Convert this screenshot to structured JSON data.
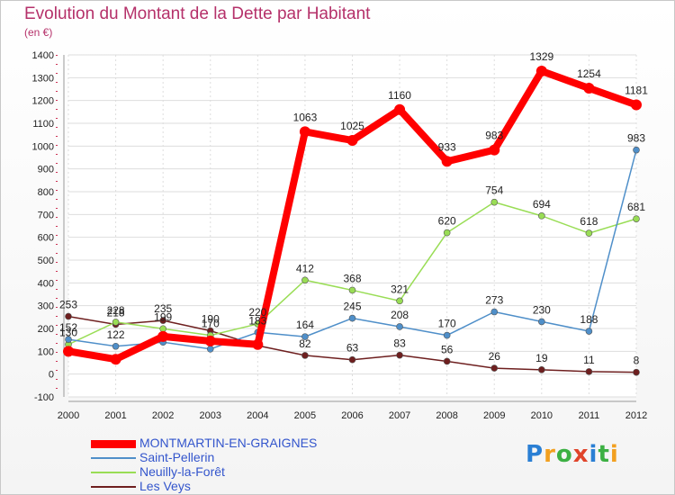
{
  "chart_data": {
    "type": "line",
    "title": "Evolution du Montant de la Dette par Habitant",
    "subtitle": "(en €)",
    "x": [
      "2000",
      "2001",
      "2002",
      "2003",
      "2004",
      "2005",
      "2006",
      "2007",
      "2008",
      "2009",
      "2010",
      "2011",
      "2012"
    ],
    "ylim": [
      -100,
      1400
    ],
    "yticks": [
      -100,
      0,
      100,
      200,
      300,
      400,
      500,
      600,
      700,
      800,
      900,
      1000,
      1100,
      1200,
      1300,
      1400
    ],
    "grid": true,
    "legend_placement": "bottom-left",
    "series": [
      {
        "name": "MONTMARTIN-EN-GRAIGNES",
        "color": "#ff0000",
        "values": [
          100,
          65,
          165,
          145,
          130,
          1063,
          1025,
          1160,
          933,
          983,
          1329,
          1254,
          1181
        ],
        "labels": [
          "",
          "",
          "",
          "",
          "",
          "1063",
          "1025",
          "1160",
          "933",
          "983",
          "1329",
          "1254",
          "1181"
        ]
      },
      {
        "name": "Saint-Pellerin",
        "color": "#4f8fc9",
        "values": [
          152,
          122,
          140,
          110,
          183,
          164,
          245,
          208,
          170,
          273,
          230,
          188,
          983
        ],
        "labels": [
          "152",
          "122",
          "",
          "",
          "183",
          "164",
          "245",
          "208",
          "170",
          "273",
          "230",
          "188",
          "983"
        ]
      },
      {
        "name": "Neuilly-la-Forêt",
        "color": "#99dd55",
        "values": [
          130,
          228,
          199,
          170,
          220,
          412,
          368,
          321,
          620,
          754,
          694,
          618,
          681
        ],
        "labels": [
          "130",
          "228",
          "199",
          "170",
          "220",
          "412",
          "368",
          "321",
          "620",
          "754",
          "694",
          "618",
          "681"
        ]
      },
      {
        "name": "Les Veys",
        "color": "#6e1f1f",
        "values": [
          253,
          218,
          235,
          190,
          125,
          82,
          63,
          83,
          56,
          26,
          19,
          11,
          8
        ],
        "labels": [
          "253",
          "218",
          "235",
          "190",
          "",
          "82",
          "63",
          "83",
          "56",
          "26",
          "19",
          "11",
          "8"
        ]
      }
    ]
  },
  "brand": {
    "letters": [
      "P",
      "r",
      "o",
      "x",
      "i",
      "t",
      "i"
    ],
    "colors": [
      "#2a7fd4",
      "#f2a020",
      "#3cb043",
      "#e0442a",
      "#2a7fd4",
      "#3cb043",
      "#f2a020"
    ]
  }
}
